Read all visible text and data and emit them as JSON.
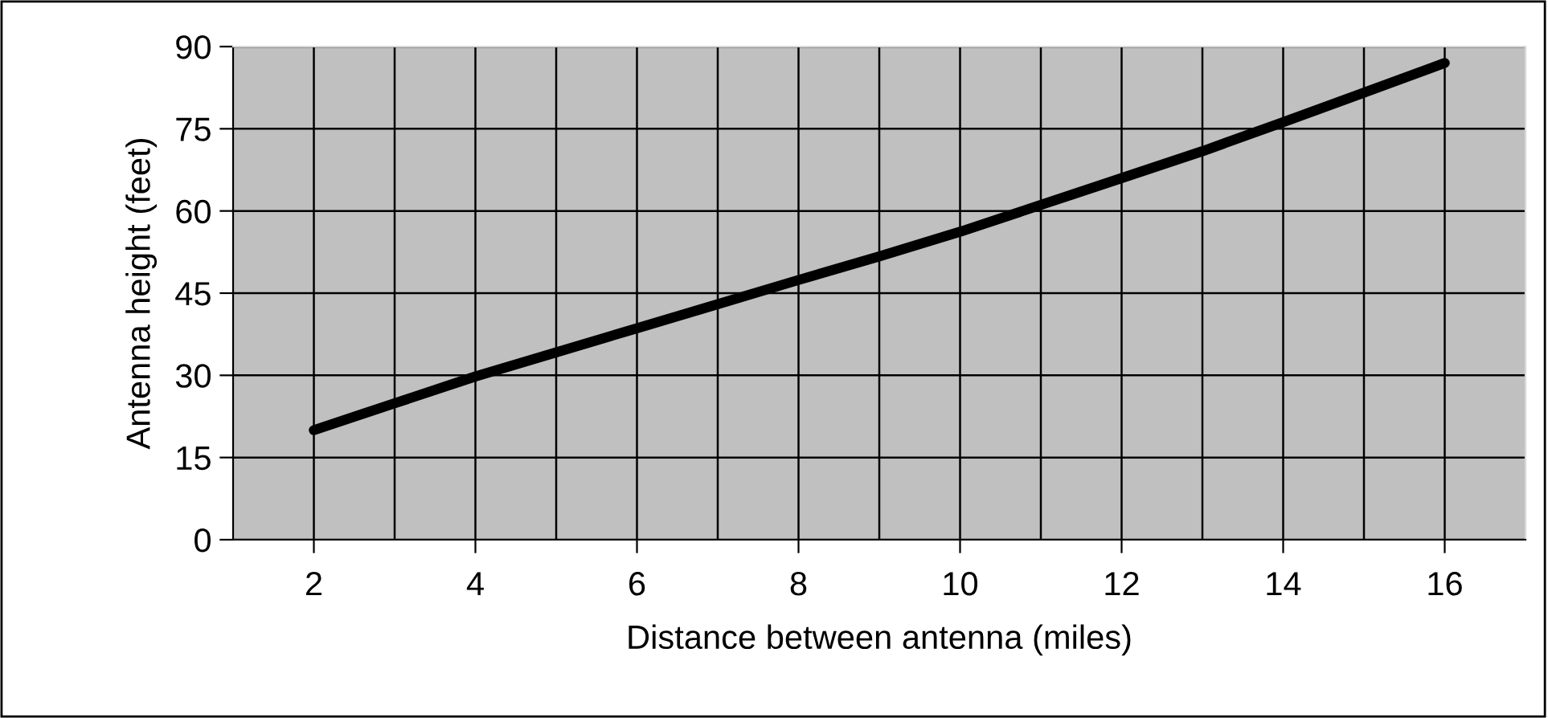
{
  "chart_data": {
    "type": "line",
    "xlabel": "Distance between antenna (miles)",
    "ylabel": "Antenna height (feet)",
    "x": [
      2,
      3,
      4,
      5,
      6,
      7,
      8,
      9,
      10,
      11,
      12,
      13,
      14,
      15,
      16
    ],
    "series": [
      {
        "color": "#000000",
        "values": [
          20,
          24.9,
          29.8,
          34.2,
          38.6,
          43,
          47.4,
          51.7,
          56.2,
          61.1,
          66,
          70.9,
          76.2,
          81.6,
          87
        ]
      }
    ],
    "xlim": [
      1,
      17
    ],
    "xticks": [
      2,
      {
        "value": 3,
        "label": null
      },
      4,
      {
        "value": 5,
        "label": null
      },
      6,
      {
        "value": 7,
        "label": null
      },
      8,
      {
        "value": 9,
        "label": null
      },
      10,
      {
        "value": 11,
        "label": null
      },
      12,
      {
        "value": 13,
        "label": null
      },
      14,
      {
        "value": 15,
        "label": null
      },
      16
    ],
    "ylim": [
      0,
      90
    ],
    "yticks": [
      0,
      15,
      30,
      45,
      60,
      75,
      90
    ],
    "grid": true,
    "marker": "none",
    "line_style": "solid"
  }
}
